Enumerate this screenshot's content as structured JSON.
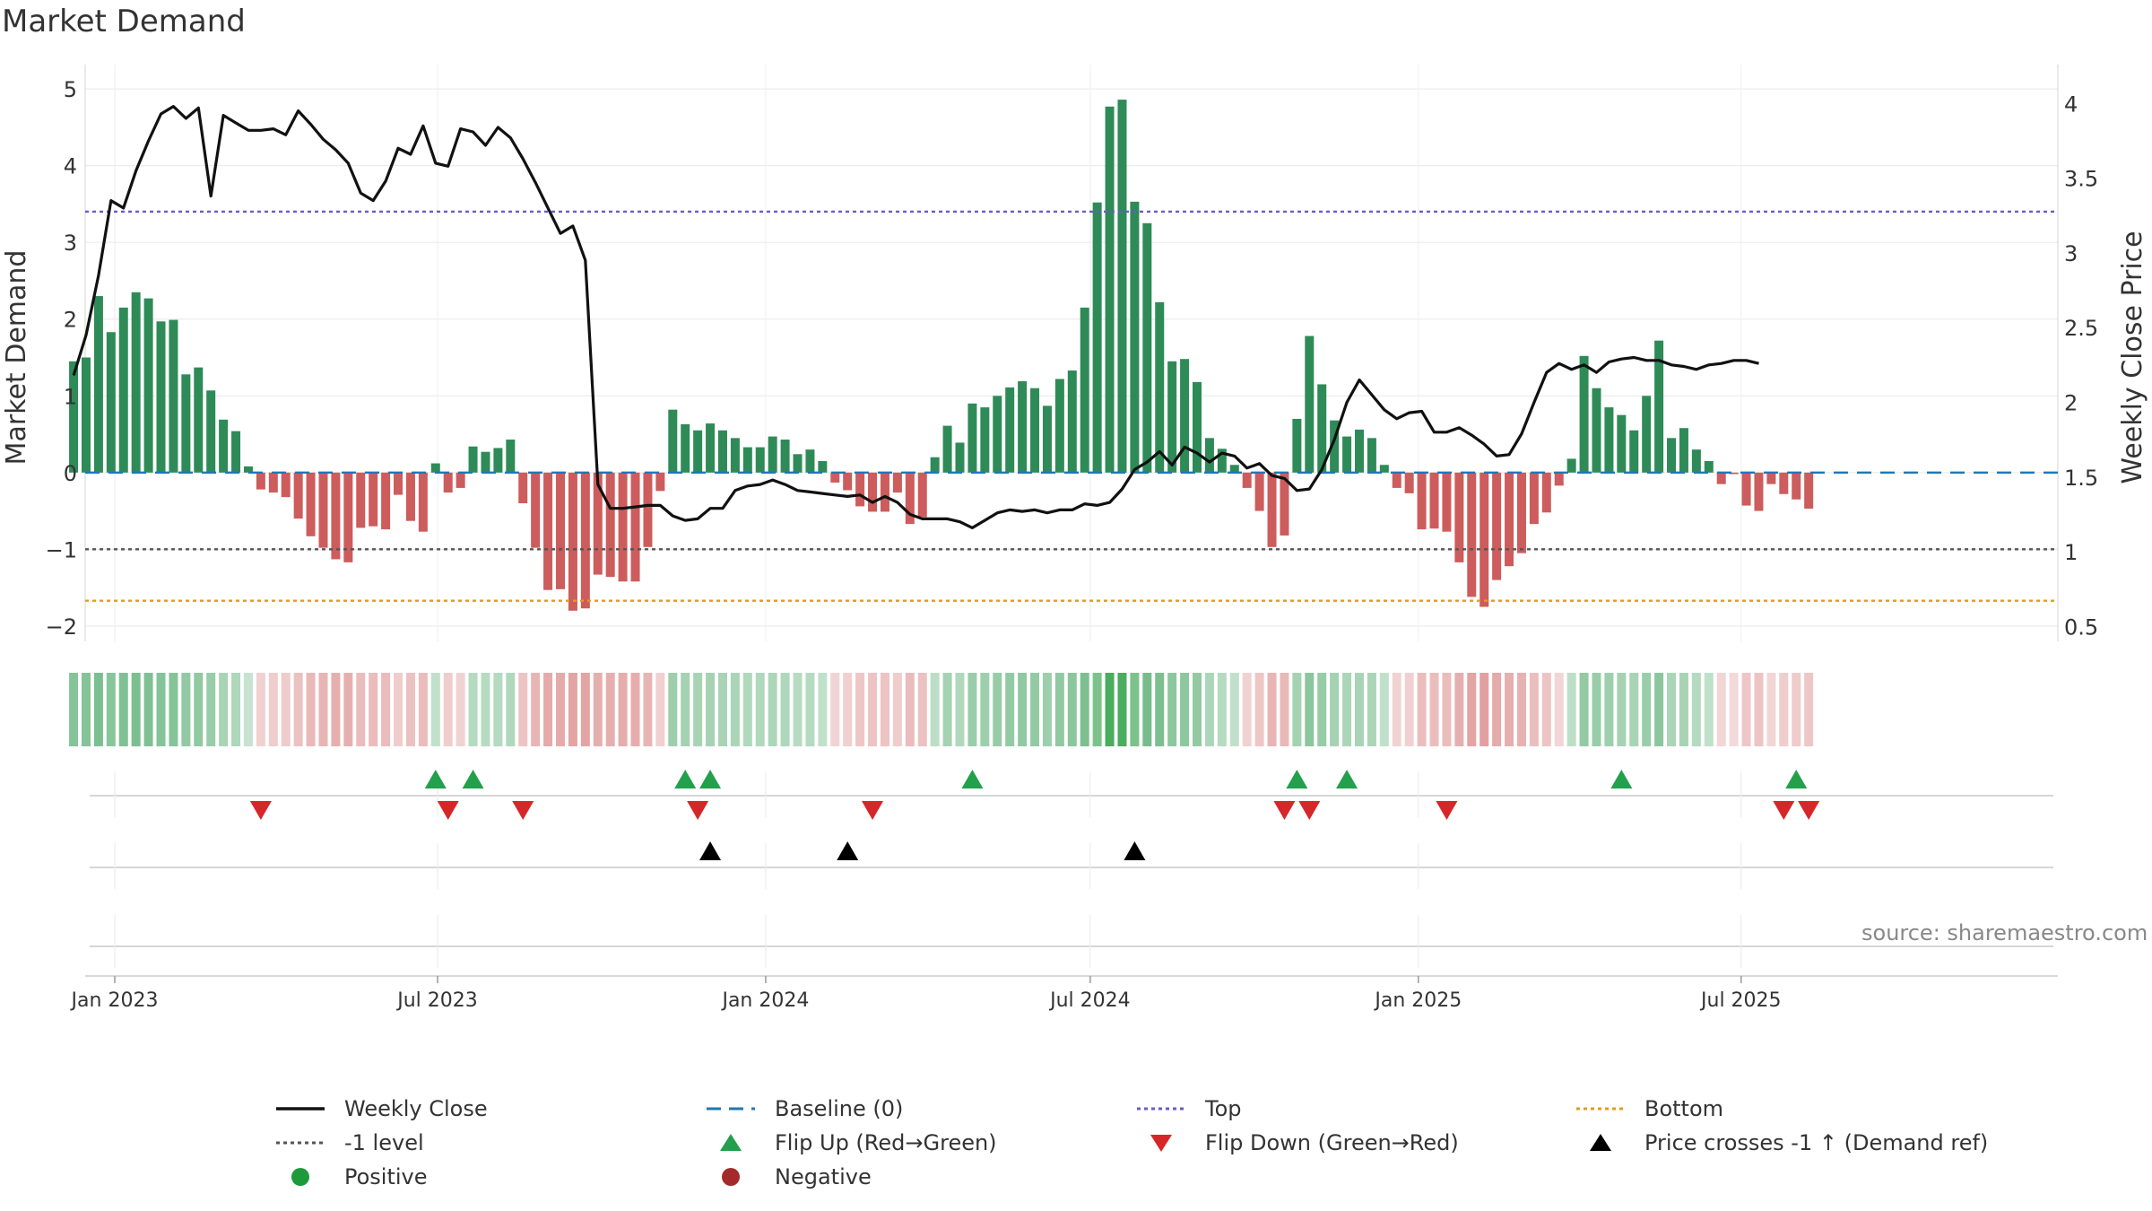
{
  "title": "Market Demand",
  "source": "source: sharemaestro.com",
  "colors": {
    "positive": "#2e8b57",
    "negative": "#cd5c5c",
    "price": "#111111",
    "baseline": "#1f77b4",
    "top": "#6a5acd",
    "bottom": "#e69a1a",
    "neg_one": "#555555",
    "flip_up": "#22a04b",
    "flip_down": "#d62728",
    "cross": "#000000",
    "positive_dot": "#1f9a3a",
    "negative_dot": "#a52a2a"
  },
  "legend": [
    {
      "key": "close",
      "label": "Weekly Close"
    },
    {
      "key": "baseline",
      "label": "Baseline (0)"
    },
    {
      "key": "top",
      "label": "Top"
    },
    {
      "key": "bottom",
      "label": "Bottom"
    },
    {
      "key": "neg_one",
      "label": "-1 level"
    },
    {
      "key": "flip_up",
      "label": "Flip Up (Red→Green)"
    },
    {
      "key": "flip_down",
      "label": "Flip Down (Green→Red)"
    },
    {
      "key": "cross",
      "label": "Price crosses -1 ↑ (Demand ref)"
    },
    {
      "key": "positive",
      "label": "Positive"
    },
    {
      "key": "negative",
      "label": "Negative"
    }
  ],
  "chart_data": {
    "type": "bar",
    "title": "Market Demand",
    "ylabel": "Market Demand",
    "y2label": "Weekly Close Price",
    "ylim": [
      -2.2,
      5.2
    ],
    "y2lim": [
      0.4,
      4.2
    ],
    "yticks": [
      5,
      4,
      3,
      2,
      1,
      0,
      -1,
      -2
    ],
    "ytick_labels": [
      "5",
      "4",
      "3",
      "2",
      "1",
      "0",
      "−1",
      "−2"
    ],
    "y2ticks": [
      4,
      3.5,
      3,
      2.5,
      2,
      1.5,
      1,
      0.5
    ],
    "y2tick_labels": [
      "4",
      "3.5",
      "3",
      "2.5",
      "2",
      "1.5",
      "1",
      "0.5"
    ],
    "start_week_offset": -3.3,
    "week_days": 7,
    "xticks": [
      {
        "label": "Jan 2023",
        "day": 0
      },
      {
        "label": "Jul 2023",
        "day": 181
      },
      {
        "label": "Jan 2024",
        "day": 365
      },
      {
        "label": "Jul 2024",
        "day": 547
      },
      {
        "label": "Jan 2025",
        "day": 731
      },
      {
        "label": "Jul 2025",
        "day": 912
      }
    ],
    "reference_lines": {
      "baseline": 0,
      "top": 3.4,
      "neg_one": -1,
      "bottom": -1.67
    },
    "demand": [
      1.45,
      1.5,
      2.3,
      1.83,
      2.15,
      2.35,
      2.27,
      1.97,
      1.99,
      1.28,
      1.37,
      1.07,
      0.69,
      0.54,
      0.08,
      -0.22,
      -0.26,
      -0.32,
      -0.6,
      -0.83,
      -0.98,
      -1.13,
      -1.17,
      -0.72,
      -0.7,
      -0.74,
      -0.29,
      -0.63,
      -0.77,
      0.12,
      -0.26,
      -0.2,
      0.34,
      0.27,
      0.32,
      0.43,
      -0.4,
      -0.98,
      -1.53,
      -1.52,
      -1.8,
      -1.77,
      -1.33,
      -1.36,
      -1.42,
      -1.42,
      -0.97,
      -0.24,
      0.82,
      0.63,
      0.55,
      0.64,
      0.55,
      0.45,
      0.33,
      0.33,
      0.47,
      0.43,
      0.24,
      0.3,
      0.15,
      -0.13,
      -0.23,
      -0.44,
      -0.51,
      -0.51,
      -0.26,
      -0.67,
      -0.58,
      0.2,
      0.61,
      0.39,
      0.9,
      0.85,
      1.0,
      1.11,
      1.19,
      1.1,
      0.87,
      1.22,
      1.33,
      2.15,
      3.52,
      4.77,
      4.86,
      3.53,
      3.25,
      2.22,
      1.45,
      1.48,
      1.18,
      0.45,
      0.31,
      0.1,
      -0.2,
      -0.5,
      -0.97,
      -0.82,
      0.7,
      1.78,
      1.15,
      0.68,
      0.47,
      0.56,
      0.45,
      0.1,
      -0.2,
      -0.27,
      -0.74,
      -0.73,
      -0.77,
      -1.17,
      -1.62,
      -1.75,
      -1.4,
      -1.22,
      -1.05,
      -0.67,
      -0.52,
      -0.17,
      0.18,
      1.52,
      1.1,
      0.85,
      0.75,
      0.55,
      1.0,
      1.72,
      0.45,
      0.58,
      0.3,
      0.15,
      -0.15,
      -0.02,
      -0.43,
      -0.5,
      -0.15,
      -0.28,
      -0.35,
      -0.47
    ],
    "close": [
      2.18,
      2.45,
      2.85,
      3.35,
      3.3,
      3.55,
      3.75,
      3.93,
      3.98,
      3.9,
      3.97,
      3.38,
      3.92,
      3.87,
      3.82,
      3.82,
      3.83,
      3.79,
      3.95,
      3.86,
      3.76,
      3.69,
      3.6,
      3.4,
      3.35,
      3.48,
      3.7,
      3.66,
      3.85,
      3.6,
      3.58,
      3.83,
      3.81,
      3.72,
      3.84,
      3.77,
      3.63,
      3.47,
      3.3,
      3.13,
      3.18,
      2.95,
      1.45,
      1.29,
      1.29,
      1.3,
      1.31,
      1.31,
      1.24,
      1.21,
      1.22,
      1.29,
      1.29,
      1.41,
      1.44,
      1.45,
      1.48,
      1.45,
      1.41,
      1.4,
      1.39,
      1.38,
      1.37,
      1.38,
      1.33,
      1.37,
      1.33,
      1.25,
      1.22,
      1.22,
      1.22,
      1.2,
      1.16,
      1.21,
      1.26,
      1.28,
      1.27,
      1.28,
      1.26,
      1.28,
      1.28,
      1.32,
      1.31,
      1.33,
      1.42,
      1.55,
      1.6,
      1.67,
      1.58,
      1.7,
      1.66,
      1.6,
      1.66,
      1.64,
      1.56,
      1.59,
      1.51,
      1.49,
      1.41,
      1.42,
      1.55,
      1.75,
      2.0,
      2.15,
      2.05,
      1.95,
      1.89,
      1.93,
      1.94,
      1.8,
      1.8,
      1.83,
      1.78,
      1.72,
      1.64,
      1.65,
      1.79,
      2.0,
      2.2,
      2.26,
      2.22,
      2.25,
      2.2,
      2.27,
      2.29,
      2.3,
      2.28,
      2.28,
      2.25,
      2.24,
      2.22,
      2.25,
      2.26,
      2.28,
      2.28,
      2.26
    ],
    "heat": [
      0.85,
      0.85,
      0.95,
      0.8,
      0.9,
      0.95,
      0.92,
      0.85,
      0.85,
      0.7,
      0.72,
      0.62,
      0.45,
      0.38,
      0.1,
      0.25,
      0.28,
      0.3,
      0.45,
      0.55,
      0.6,
      0.68,
      0.7,
      0.5,
      0.5,
      0.5,
      0.28,
      0.45,
      0.5,
      0.15,
      0.28,
      0.22,
      0.3,
      0.28,
      0.3,
      0.35,
      0.4,
      0.6,
      0.75,
      0.75,
      0.85,
      0.85,
      0.7,
      0.7,
      0.72,
      0.72,
      0.6,
      0.25,
      0.55,
      0.48,
      0.45,
      0.48,
      0.45,
      0.42,
      0.35,
      0.35,
      0.4,
      0.38,
      0.28,
      0.3,
      0.18,
      0.2,
      0.25,
      0.38,
      0.42,
      0.42,
      0.28,
      0.5,
      0.45,
      0.22,
      0.48,
      0.35,
      0.6,
      0.58,
      0.65,
      0.7,
      0.72,
      0.68,
      0.58,
      0.72,
      0.78,
      0.95,
      1.3,
      1.6,
      1.6,
      1.3,
      1.2,
      0.95,
      0.75,
      0.75,
      0.68,
      0.4,
      0.32,
      0.15,
      0.22,
      0.38,
      0.6,
      0.55,
      0.5,
      0.78,
      0.65,
      0.48,
      0.42,
      0.45,
      0.42,
      0.15,
      0.22,
      0.25,
      0.48,
      0.48,
      0.5,
      0.68,
      0.85,
      0.88,
      0.75,
      0.7,
      0.65,
      0.48,
      0.4,
      0.18,
      0.2,
      0.7,
      0.62,
      0.55,
      0.5,
      0.45,
      0.6,
      0.78,
      0.42,
      0.45,
      0.32,
      0.18,
      0.18,
      0.1,
      0.38,
      0.4,
      0.18,
      0.28,
      0.32,
      0.38
    ],
    "events": {
      "flip_up": [
        29,
        32,
        49,
        51,
        72,
        98,
        102,
        124,
        138
      ],
      "flip_down": [
        15,
        30,
        36,
        50,
        64,
        97,
        99,
        110,
        137,
        139
      ],
      "price_cross_up": [
        51,
        62,
        85
      ]
    }
  }
}
